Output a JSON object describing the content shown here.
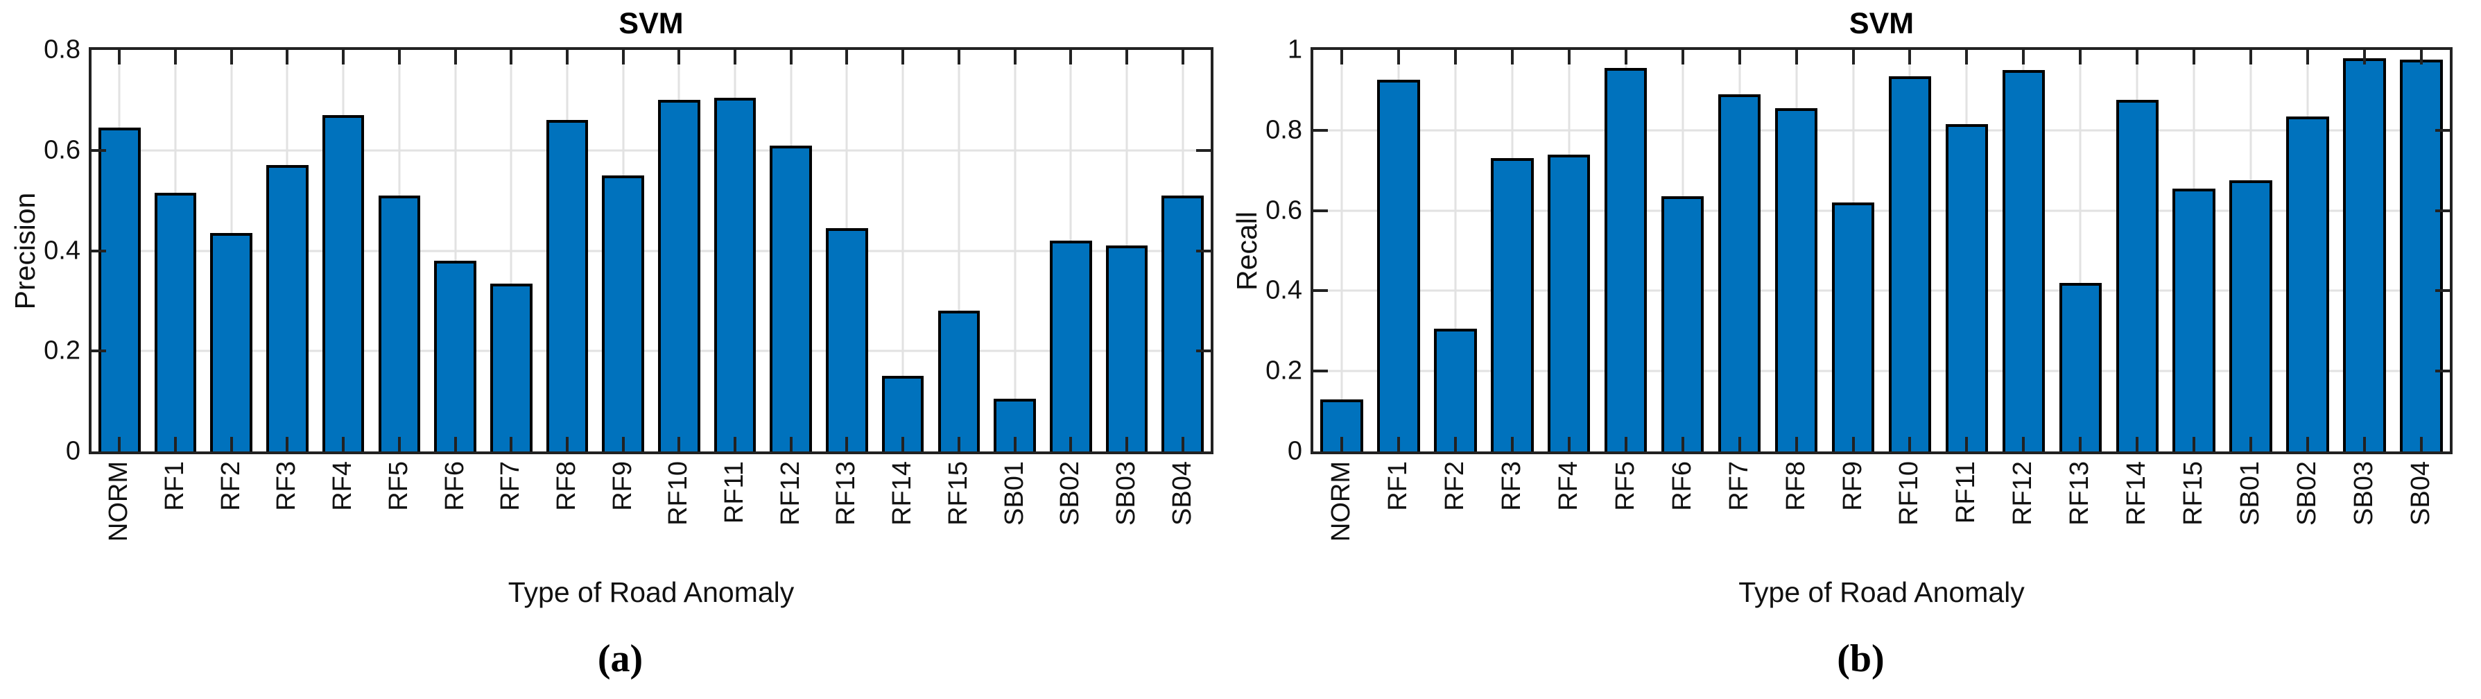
{
  "colors": {
    "bar_fill": "#0072BD",
    "bar_edge": "#000000",
    "axis": "#222222",
    "grid": "#e2e2e2",
    "text": "#111111"
  },
  "chart_data": [
    {
      "type": "bar",
      "title": "SVM",
      "xlabel": "Type of Road Anomaly",
      "ylabel": "Precision",
      "caption": "(a)",
      "ylim": [
        0,
        0.8
      ],
      "grid": true,
      "legend": "none",
      "bar_width_fraction": 0.75,
      "yticks": [
        {
          "value": 0,
          "label": "0"
        },
        {
          "value": 0.2,
          "label": "0.2"
        },
        {
          "value": 0.4,
          "label": "0.4"
        },
        {
          "value": 0.6,
          "label": "0.6"
        },
        {
          "value": 0.8,
          "label": "0.8"
        }
      ],
      "categories": [
        "NORM",
        "RF1",
        "RF2",
        "RF3",
        "RF4",
        "RF5",
        "RF6",
        "RF7",
        "RF8",
        "RF9",
        "RF10",
        "RF11",
        "RF12",
        "RF13",
        "RF14",
        "RF15",
        "SB01",
        "SB02",
        "SB03",
        "SB04"
      ],
      "values": [
        0.645,
        0.515,
        0.435,
        0.57,
        0.67,
        0.51,
        0.38,
        0.335,
        0.66,
        0.55,
        0.7,
        0.705,
        0.61,
        0.445,
        0.15,
        0.28,
        0.105,
        0.42,
        0.41,
        0.51
      ]
    },
    {
      "type": "bar",
      "title": "SVM",
      "xlabel": "Type of Road Anomaly",
      "ylabel": "Recall",
      "caption": "(b)",
      "ylim": [
        0,
        1
      ],
      "grid": true,
      "legend": "none",
      "bar_width_fraction": 0.75,
      "yticks": [
        {
          "value": 0,
          "label": "0"
        },
        {
          "value": 0.2,
          "label": "0.2"
        },
        {
          "value": 0.4,
          "label": "0.4"
        },
        {
          "value": 0.6,
          "label": "0.6"
        },
        {
          "value": 0.8,
          "label": "0.8"
        },
        {
          "value": 1,
          "label": "1"
        }
      ],
      "categories": [
        "NORM",
        "RF1",
        "RF2",
        "RF3",
        "RF4",
        "RF5",
        "RF6",
        "RF7",
        "RF8",
        "RF9",
        "RF10",
        "RF11",
        "RF12",
        "RF13",
        "RF14",
        "RF15",
        "SB01",
        "SB02",
        "SB03",
        "SB04"
      ],
      "values": [
        0.13,
        0.925,
        0.305,
        0.73,
        0.74,
        0.955,
        0.635,
        0.89,
        0.855,
        0.62,
        0.935,
        0.815,
        0.95,
        0.42,
        0.875,
        0.655,
        0.675,
        0.835,
        0.98,
        0.975
      ]
    }
  ]
}
